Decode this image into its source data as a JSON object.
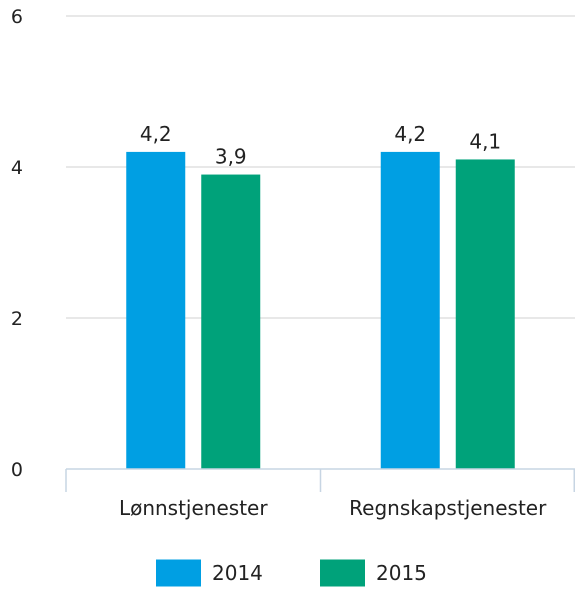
{
  "chart_data": {
    "type": "bar",
    "categories": [
      "Lønnstjenester",
      "Regnskapstjenester"
    ],
    "series": [
      {
        "name": "2014",
        "values": [
          4.2,
          4.2
        ],
        "labels": [
          "4,2",
          "4,2"
        ],
        "color": "#009fe3"
      },
      {
        "name": "2015",
        "values": [
          3.9,
          4.1
        ],
        "labels": [
          "3,9",
          "4,1"
        ],
        "color": "#00a27a"
      }
    ],
    "title": "",
    "xlabel": "",
    "ylabel": "",
    "ylim": [
      0,
      6
    ],
    "yticks": [
      0,
      2,
      4,
      6
    ],
    "ytick_labels": [
      "0",
      "2",
      "4",
      "6"
    ],
    "grid": true,
    "legend_position": "bottom"
  }
}
